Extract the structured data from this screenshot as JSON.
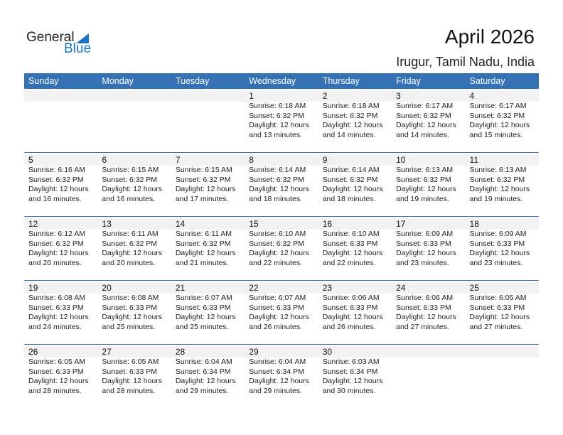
{
  "logo": {
    "general": "General",
    "blue": "Blue",
    "accent": "#1a74c0"
  },
  "title": "April 2026",
  "location": "Irugur, Tamil Nadu, India",
  "colors": {
    "header": "#3571b5",
    "band": "#f2f2f2"
  },
  "weekdays": [
    "Sunday",
    "Monday",
    "Tuesday",
    "Wednesday",
    "Thursday",
    "Friday",
    "Saturday"
  ],
  "weeks": [
    [
      null,
      null,
      null,
      {
        "day": "1",
        "sunrise": "Sunrise: 6:18 AM",
        "sunset": "Sunset: 6:32 PM",
        "daylight1": "Daylight: 12 hours",
        "daylight2": "and 13 minutes."
      },
      {
        "day": "2",
        "sunrise": "Sunrise: 6:18 AM",
        "sunset": "Sunset: 6:32 PM",
        "daylight1": "Daylight: 12 hours",
        "daylight2": "and 14 minutes."
      },
      {
        "day": "3",
        "sunrise": "Sunrise: 6:17 AM",
        "sunset": "Sunset: 6:32 PM",
        "daylight1": "Daylight: 12 hours",
        "daylight2": "and 14 minutes."
      },
      {
        "day": "4",
        "sunrise": "Sunrise: 6:17 AM",
        "sunset": "Sunset: 6:32 PM",
        "daylight1": "Daylight: 12 hours",
        "daylight2": "and 15 minutes."
      }
    ],
    [
      {
        "day": "5",
        "sunrise": "Sunrise: 6:16 AM",
        "sunset": "Sunset: 6:32 PM",
        "daylight1": "Daylight: 12 hours",
        "daylight2": "and 16 minutes."
      },
      {
        "day": "6",
        "sunrise": "Sunrise: 6:15 AM",
        "sunset": "Sunset: 6:32 PM",
        "daylight1": "Daylight: 12 hours",
        "daylight2": "and 16 minutes."
      },
      {
        "day": "7",
        "sunrise": "Sunrise: 6:15 AM",
        "sunset": "Sunset: 6:32 PM",
        "daylight1": "Daylight: 12 hours",
        "daylight2": "and 17 minutes."
      },
      {
        "day": "8",
        "sunrise": "Sunrise: 6:14 AM",
        "sunset": "Sunset: 6:32 PM",
        "daylight1": "Daylight: 12 hours",
        "daylight2": "and 18 minutes."
      },
      {
        "day": "9",
        "sunrise": "Sunrise: 6:14 AM",
        "sunset": "Sunset: 6:32 PM",
        "daylight1": "Daylight: 12 hours",
        "daylight2": "and 18 minutes."
      },
      {
        "day": "10",
        "sunrise": "Sunrise: 6:13 AM",
        "sunset": "Sunset: 6:32 PM",
        "daylight1": "Daylight: 12 hours",
        "daylight2": "and 19 minutes."
      },
      {
        "day": "11",
        "sunrise": "Sunrise: 6:13 AM",
        "sunset": "Sunset: 6:32 PM",
        "daylight1": "Daylight: 12 hours",
        "daylight2": "and 19 minutes."
      }
    ],
    [
      {
        "day": "12",
        "sunrise": "Sunrise: 6:12 AM",
        "sunset": "Sunset: 6:32 PM",
        "daylight1": "Daylight: 12 hours",
        "daylight2": "and 20 minutes."
      },
      {
        "day": "13",
        "sunrise": "Sunrise: 6:11 AM",
        "sunset": "Sunset: 6:32 PM",
        "daylight1": "Daylight: 12 hours",
        "daylight2": "and 20 minutes."
      },
      {
        "day": "14",
        "sunrise": "Sunrise: 6:11 AM",
        "sunset": "Sunset: 6:32 PM",
        "daylight1": "Daylight: 12 hours",
        "daylight2": "and 21 minutes."
      },
      {
        "day": "15",
        "sunrise": "Sunrise: 6:10 AM",
        "sunset": "Sunset: 6:32 PM",
        "daylight1": "Daylight: 12 hours",
        "daylight2": "and 22 minutes."
      },
      {
        "day": "16",
        "sunrise": "Sunrise: 6:10 AM",
        "sunset": "Sunset: 6:33 PM",
        "daylight1": "Daylight: 12 hours",
        "daylight2": "and 22 minutes."
      },
      {
        "day": "17",
        "sunrise": "Sunrise: 6:09 AM",
        "sunset": "Sunset: 6:33 PM",
        "daylight1": "Daylight: 12 hours",
        "daylight2": "and 23 minutes."
      },
      {
        "day": "18",
        "sunrise": "Sunrise: 6:09 AM",
        "sunset": "Sunset: 6:33 PM",
        "daylight1": "Daylight: 12 hours",
        "daylight2": "and 23 minutes."
      }
    ],
    [
      {
        "day": "19",
        "sunrise": "Sunrise: 6:08 AM",
        "sunset": "Sunset: 6:33 PM",
        "daylight1": "Daylight: 12 hours",
        "daylight2": "and 24 minutes."
      },
      {
        "day": "20",
        "sunrise": "Sunrise: 6:08 AM",
        "sunset": "Sunset: 6:33 PM",
        "daylight1": "Daylight: 12 hours",
        "daylight2": "and 25 minutes."
      },
      {
        "day": "21",
        "sunrise": "Sunrise: 6:07 AM",
        "sunset": "Sunset: 6:33 PM",
        "daylight1": "Daylight: 12 hours",
        "daylight2": "and 25 minutes."
      },
      {
        "day": "22",
        "sunrise": "Sunrise: 6:07 AM",
        "sunset": "Sunset: 6:33 PM",
        "daylight1": "Daylight: 12 hours",
        "daylight2": "and 26 minutes."
      },
      {
        "day": "23",
        "sunrise": "Sunrise: 6:06 AM",
        "sunset": "Sunset: 6:33 PM",
        "daylight1": "Daylight: 12 hours",
        "daylight2": "and 26 minutes."
      },
      {
        "day": "24",
        "sunrise": "Sunrise: 6:06 AM",
        "sunset": "Sunset: 6:33 PM",
        "daylight1": "Daylight: 12 hours",
        "daylight2": "and 27 minutes."
      },
      {
        "day": "25",
        "sunrise": "Sunrise: 6:05 AM",
        "sunset": "Sunset: 6:33 PM",
        "daylight1": "Daylight: 12 hours",
        "daylight2": "and 27 minutes."
      }
    ],
    [
      {
        "day": "26",
        "sunrise": "Sunrise: 6:05 AM",
        "sunset": "Sunset: 6:33 PM",
        "daylight1": "Daylight: 12 hours",
        "daylight2": "and 28 minutes."
      },
      {
        "day": "27",
        "sunrise": "Sunrise: 6:05 AM",
        "sunset": "Sunset: 6:33 PM",
        "daylight1": "Daylight: 12 hours",
        "daylight2": "and 28 minutes."
      },
      {
        "day": "28",
        "sunrise": "Sunrise: 6:04 AM",
        "sunset": "Sunset: 6:34 PM",
        "daylight1": "Daylight: 12 hours",
        "daylight2": "and 29 minutes."
      },
      {
        "day": "29",
        "sunrise": "Sunrise: 6:04 AM",
        "sunset": "Sunset: 6:34 PM",
        "daylight1": "Daylight: 12 hours",
        "daylight2": "and 29 minutes."
      },
      {
        "day": "30",
        "sunrise": "Sunrise: 6:03 AM",
        "sunset": "Sunset: 6:34 PM",
        "daylight1": "Daylight: 12 hours",
        "daylight2": "and 30 minutes."
      },
      null,
      null
    ]
  ]
}
